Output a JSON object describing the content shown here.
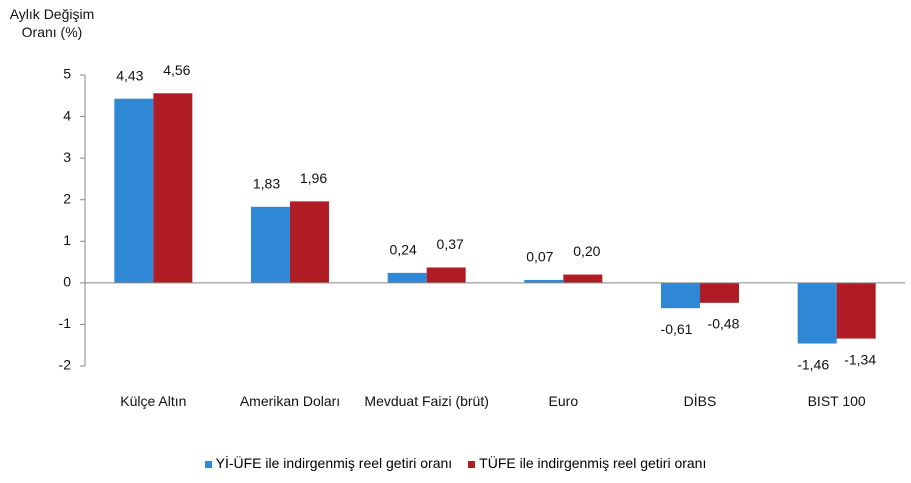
{
  "chart_data": {
    "type": "bar",
    "ylabel": "Aylık Değişim Oranı (%)",
    "categories": [
      "Külçe Altın",
      "Amerikan Doları",
      "Mevduat Faizi (brüt)",
      "Euro",
      "DİBS",
      "BIST 100"
    ],
    "series": [
      {
        "name": "Yİ-ÜFE ile indirgenmiş reel getiri oranı",
        "color": "#2f88d6",
        "values": [
          4.43,
          1.83,
          0.24,
          0.07,
          -0.61,
          -1.46
        ],
        "value_labels": [
          "4,43",
          "1,83",
          "0,24",
          "0,07",
          "-0,61",
          "-1,46"
        ]
      },
      {
        "name": "TÜFE ile indirgenmiş reel getiri oranı",
        "color": "#b01c24",
        "values": [
          4.56,
          1.96,
          0.37,
          0.2,
          -0.48,
          -1.34
        ],
        "value_labels": [
          "4,56",
          "1,96",
          "0,37",
          "0,20",
          "-0,48",
          "-1,34"
        ]
      }
    ],
    "ylim": [
      -2,
      5
    ],
    "yticks": [
      -2,
      -1,
      0,
      1,
      2,
      3,
      4,
      5
    ],
    "legend": "bottom"
  }
}
